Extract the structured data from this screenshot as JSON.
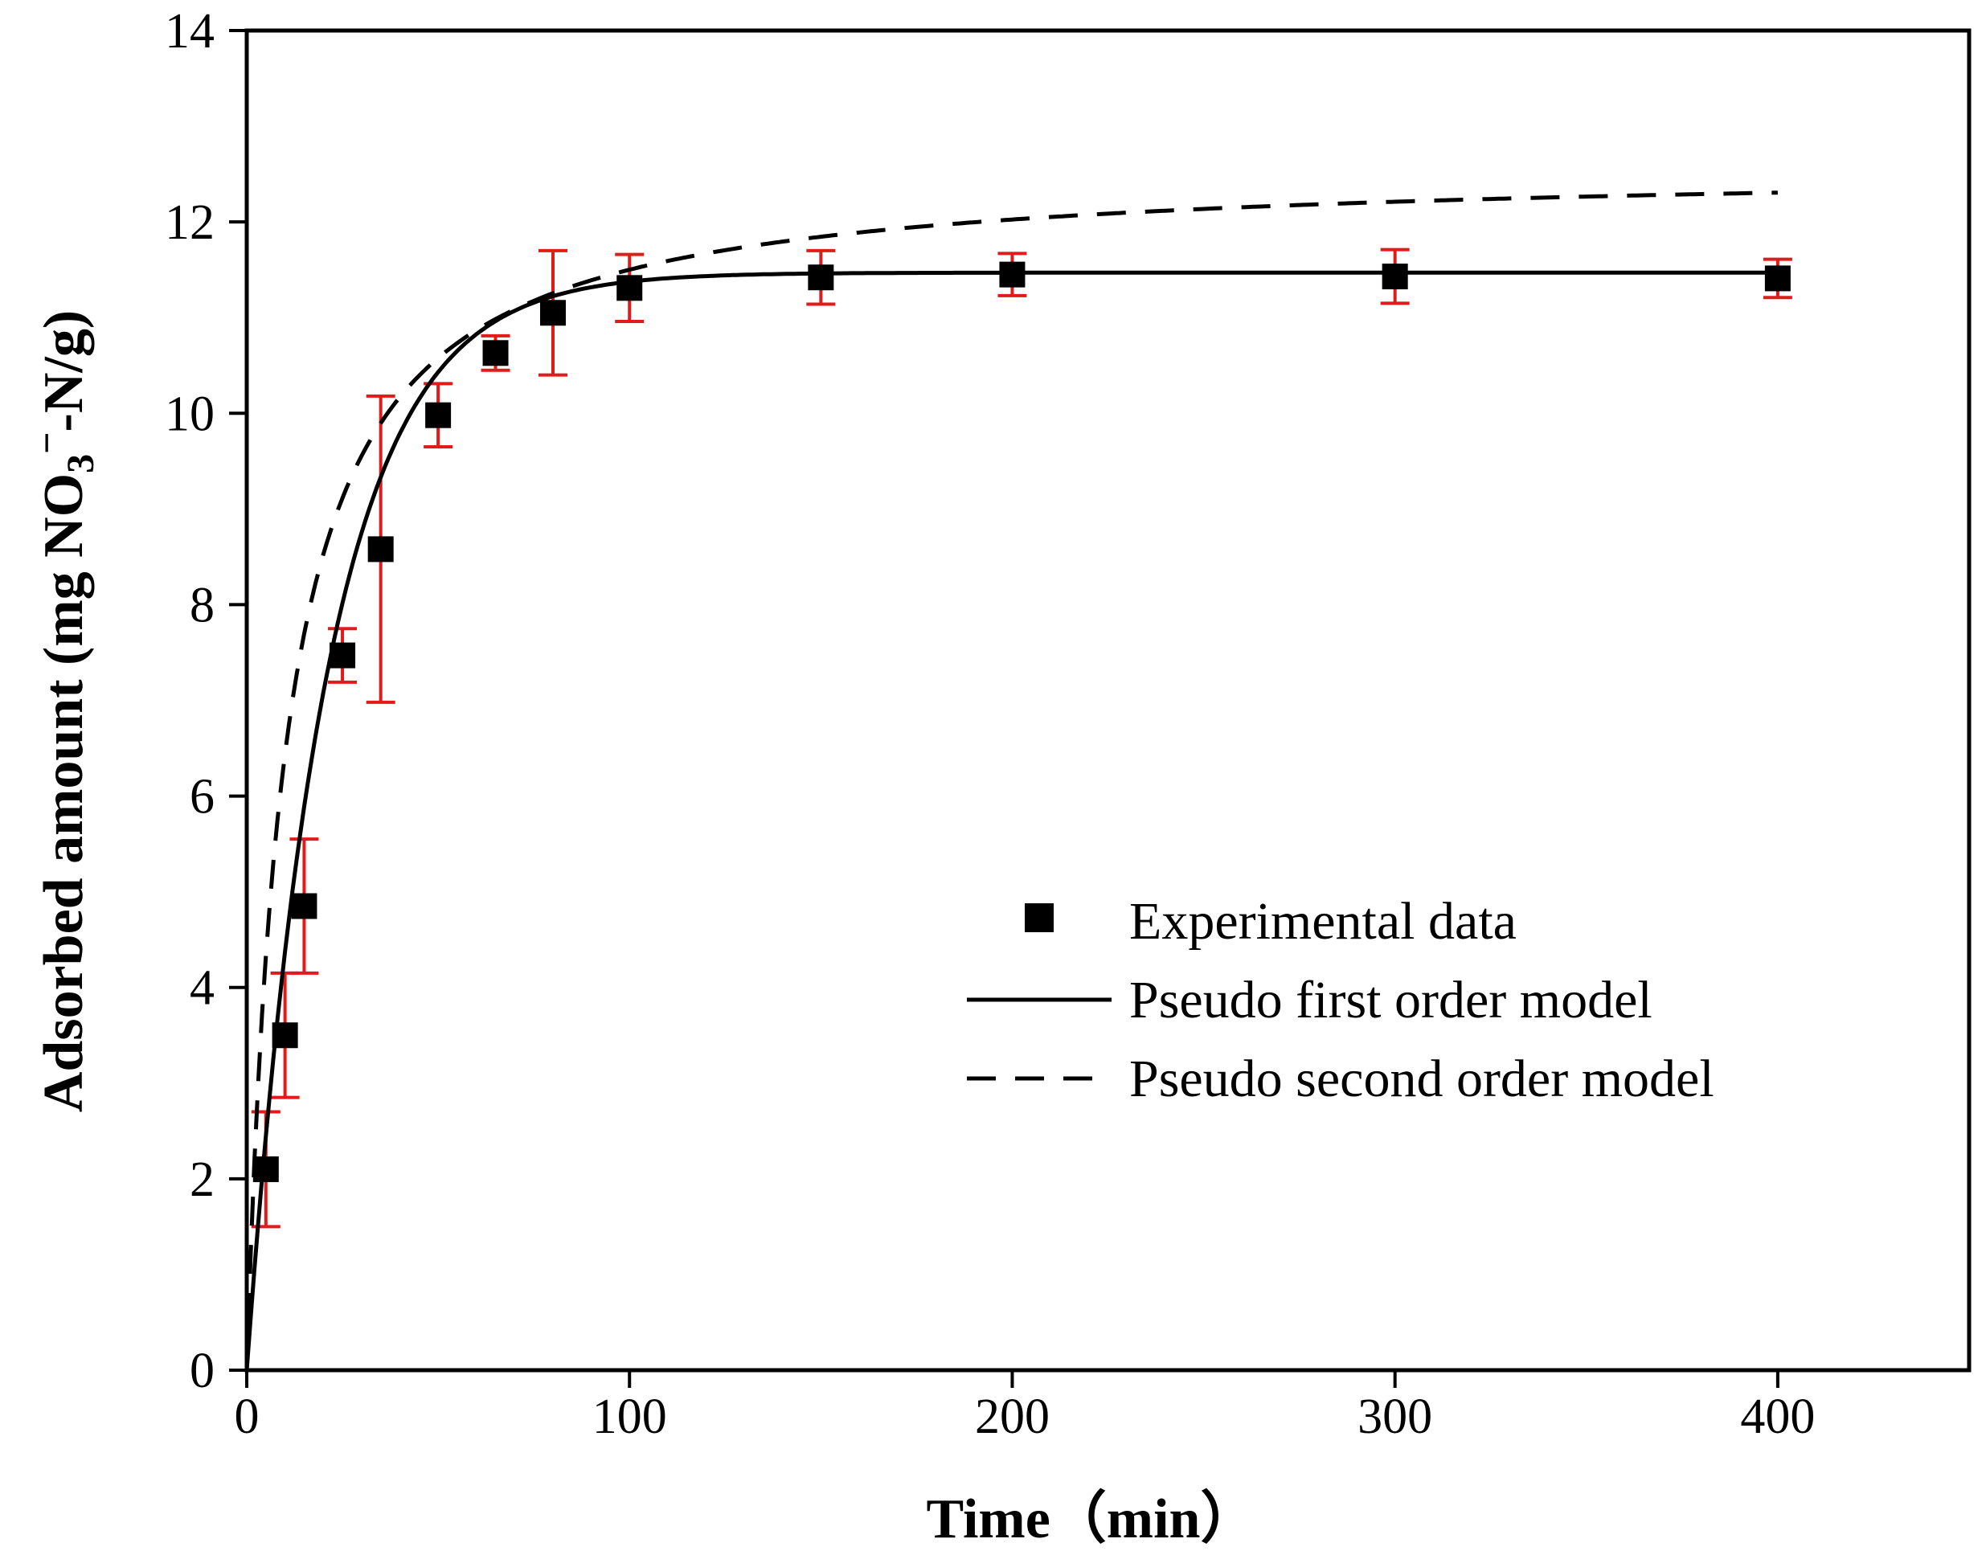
{
  "chart_data": {
    "type": "scatter",
    "title": "",
    "xlabel": "Time（min）",
    "ylabel_parts": {
      "prefix": "Adsorbed amount (mg NO",
      "subscript": "3",
      "superscript": "−",
      "suffix": "-N/g)"
    },
    "xlim": [
      0,
      450
    ],
    "ylim": [
      0,
      14
    ],
    "x_ticks": [
      0,
      100,
      200,
      300,
      400
    ],
    "y_ticks": [
      0,
      2,
      4,
      6,
      8,
      10,
      12,
      14
    ],
    "x_tick_labels": [
      "0",
      "100",
      "200",
      "300",
      "400"
    ],
    "y_tick_labels": [
      "0",
      "2",
      "4",
      "6",
      "8",
      "10",
      "12",
      "14"
    ],
    "legend_position": "center-right",
    "series": [
      {
        "name": "Experimental data",
        "kind": "points",
        "color": "#000000",
        "error_color": "#e11a1a",
        "x": [
          5,
          10,
          15,
          25,
          35,
          50,
          65,
          80,
          100,
          150,
          200,
          300,
          400
        ],
        "y": [
          2.1,
          3.5,
          4.85,
          7.47,
          8.58,
          9.98,
          10.63,
          11.05,
          11.31,
          11.42,
          11.45,
          11.43,
          11.41
        ],
        "error": [
          0.6,
          0.65,
          0.7,
          0.28,
          1.6,
          0.33,
          0.18,
          0.65,
          0.35,
          0.28,
          0.22,
          0.28,
          0.2
        ]
      },
      {
        "name": "Pseudo first order model",
        "kind": "line",
        "style": "solid",
        "color": "#000000",
        "model": "pfo",
        "qe": 11.47,
        "k1": 0.048,
        "x_range": [
          0,
          400
        ]
      },
      {
        "name": "Pseudo second order model",
        "kind": "line",
        "style": "dashed",
        "color": "#000000",
        "model": "pso",
        "qe": 12.6,
        "k2": 0.0083,
        "x_range": [
          0,
          400
        ]
      }
    ]
  }
}
